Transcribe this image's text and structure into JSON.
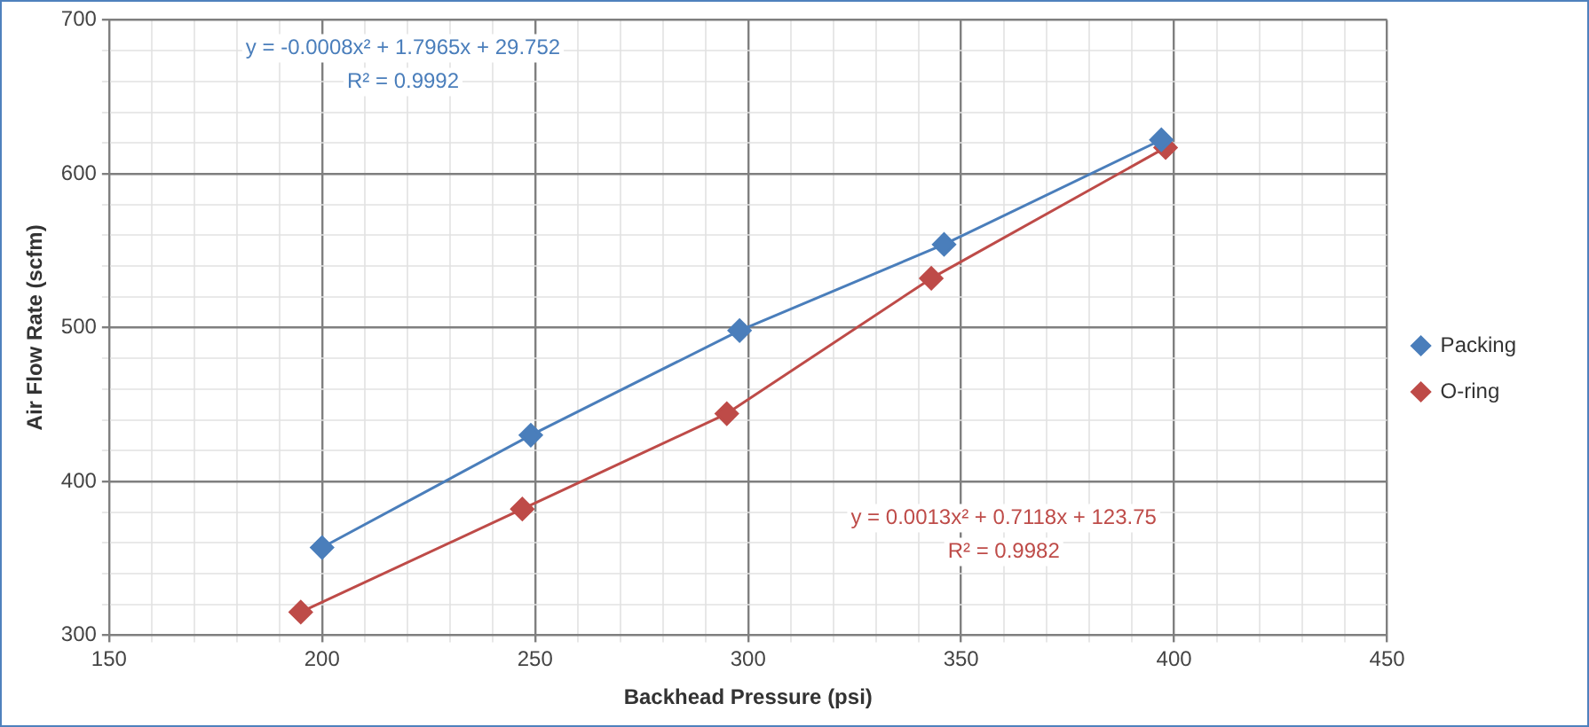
{
  "chart_data": {
    "type": "line",
    "xlabel": "Backhead Pressure (psi)",
    "ylabel": "Air Flow Rate (scfm)",
    "series": [
      {
        "name": "Packing",
        "color": "#4a7ebb",
        "x": [
          200,
          249,
          298,
          346,
          397
        ],
        "values": [
          357,
          430,
          498,
          554,
          622
        ]
      },
      {
        "name": "O-ring",
        "color": "#be4b48",
        "x": [
          195,
          247,
          295,
          343,
          398
        ],
        "values": [
          315,
          382,
          444,
          532,
          617
        ]
      }
    ],
    "xlim": [
      150,
      450
    ],
    "xticks": [
      150,
      {
        "value": 160,
        "label": null
      },
      {
        "value": 170,
        "label": null
      },
      {
        "value": 180,
        "label": null
      },
      {
        "value": 190,
        "label": null
      },
      200,
      {
        "value": 210,
        "label": null
      },
      {
        "value": 220,
        "label": null
      },
      {
        "value": 230,
        "label": null
      },
      {
        "value": 240,
        "label": null
      },
      250,
      {
        "value": 260,
        "label": null
      },
      {
        "value": 270,
        "label": null
      },
      {
        "value": 280,
        "label": null
      },
      {
        "value": 290,
        "label": null
      },
      300,
      {
        "value": 310,
        "label": null
      },
      {
        "value": 320,
        "label": null
      },
      {
        "value": 330,
        "label": null
      },
      {
        "value": 340,
        "label": null
      },
      350,
      {
        "value": 360,
        "label": null
      },
      {
        "value": 370,
        "label": null
      },
      {
        "value": 380,
        "label": null
      },
      {
        "value": 390,
        "label": null
      },
      400,
      {
        "value": 410,
        "label": null
      },
      {
        "value": 420,
        "label": null
      },
      {
        "value": 430,
        "label": null
      },
      {
        "value": 440,
        "label": null
      },
      450
    ],
    "ylim": [
      300,
      700
    ],
    "yticks": [
      300,
      {
        "value": 320,
        "label": null
      },
      {
        "value": 340,
        "label": null
      },
      {
        "value": 360,
        "label": null
      },
      {
        "value": 380,
        "label": null
      },
      400,
      {
        "value": 420,
        "label": null
      },
      {
        "value": 440,
        "label": null
      },
      {
        "value": 460,
        "label": null
      },
      {
        "value": 480,
        "label": null
      },
      500,
      {
        "value": 520,
        "label": null
      },
      {
        "value": 540,
        "label": null
      },
      {
        "value": 560,
        "label": null
      },
      {
        "value": 580,
        "label": null
      },
      600,
      {
        "value": 620,
        "label": null
      },
      {
        "value": 640,
        "label": null
      },
      {
        "value": 660,
        "label": null
      },
      {
        "value": 680,
        "label": null
      },
      700
    ],
    "annotations": [
      "y = -0.0008x² + 1.7965x + 29.752",
      "R² = 0.9992",
      "y = 0.0013x² + 0.7118x + 123.75",
      "R² = 0.9982"
    ],
    "grid": true,
    "legend": "right",
    "marker": "diamond",
    "line_style": "solid"
  }
}
